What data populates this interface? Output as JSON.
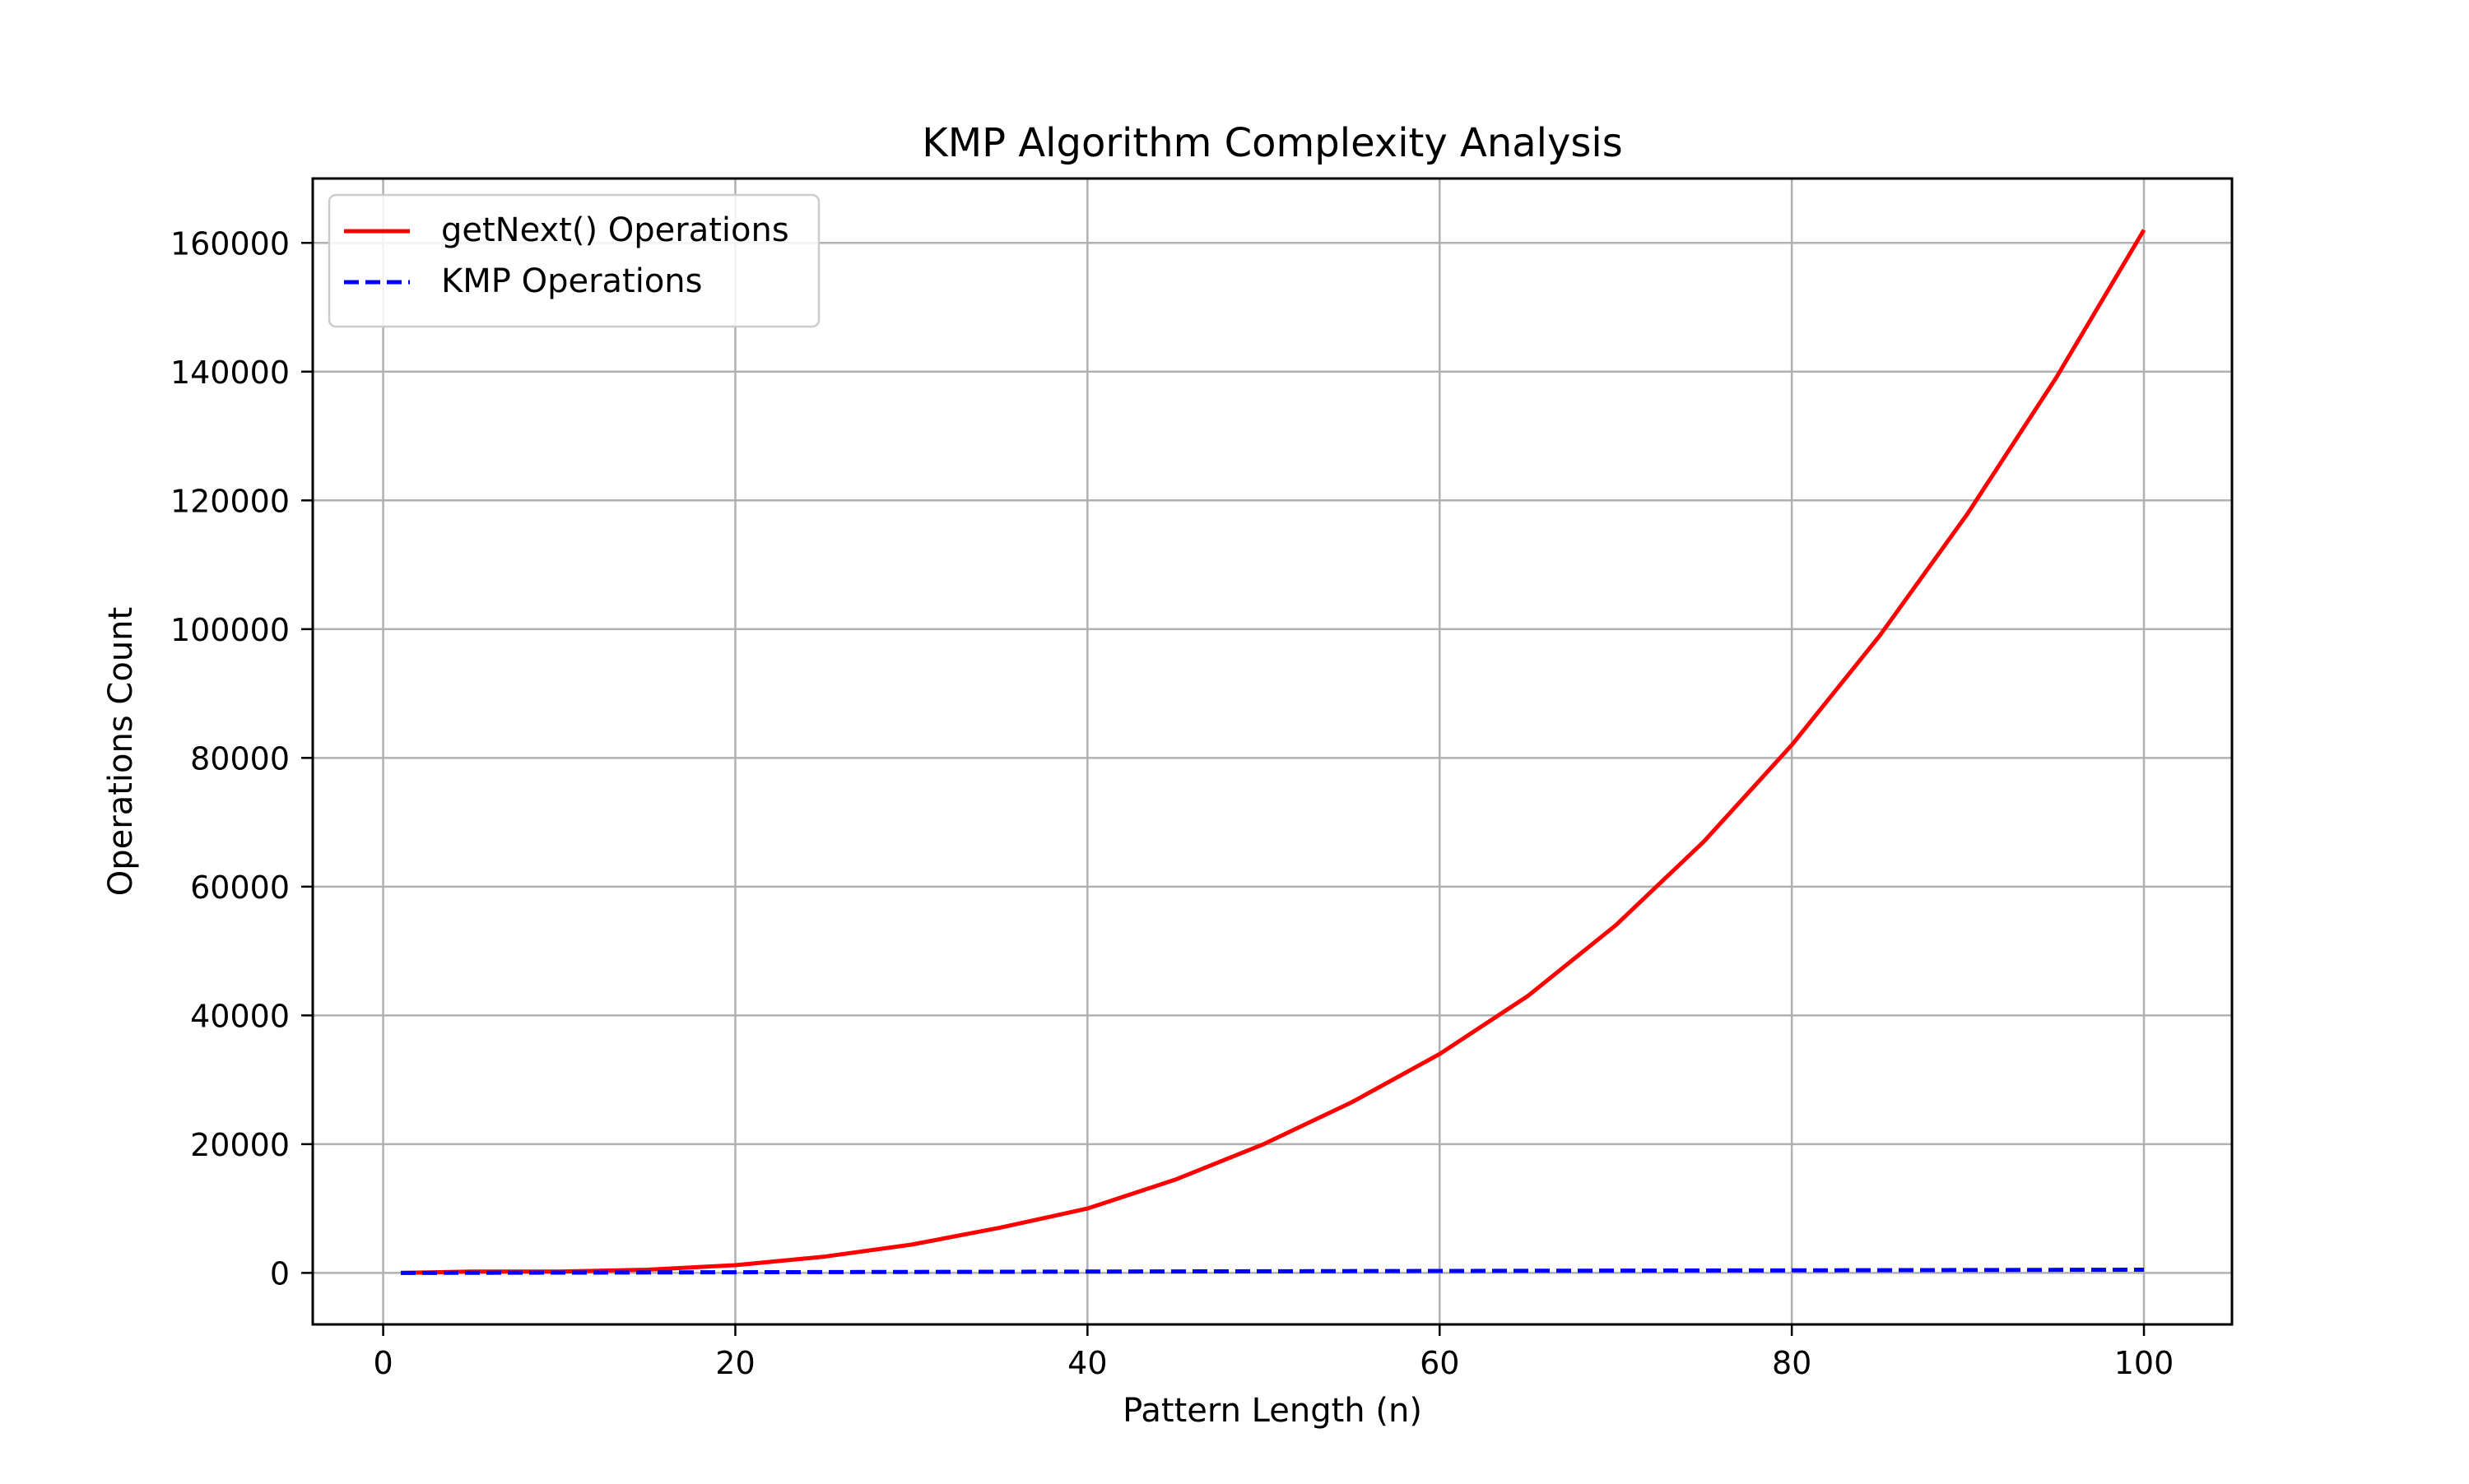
{
  "chart_data": {
    "type": "line",
    "title": "KMP Algorithm Complexity Analysis",
    "xlabel": "Pattern Length (n)",
    "ylabel": "Operations Count",
    "xlim": [
      -4,
      105
    ],
    "ylim": [
      -8000,
      170000
    ],
    "xticks": [
      0,
      20,
      40,
      60,
      80,
      100
    ],
    "yticks": [
      0,
      20000,
      40000,
      60000,
      80000,
      100000,
      120000,
      140000,
      160000
    ],
    "grid": true,
    "legend_position": "upper left",
    "series": [
      {
        "name": "getNext() Operations",
        "color": "#ff0000",
        "style": "solid",
        "x": [
          1,
          5,
          10,
          15,
          20,
          25,
          30,
          35,
          40,
          45,
          50,
          55,
          60,
          65,
          70,
          75,
          80,
          85,
          90,
          95,
          100
        ],
        "y": [
          0,
          200,
          200,
          500,
          1200,
          2500,
          4400,
          7000,
          10000,
          14500,
          20000,
          26500,
          34000,
          43000,
          54000,
          67000,
          82000,
          99000,
          118000,
          139000,
          162000
        ]
      },
      {
        "name": "KMP Operations",
        "color": "#0000ff",
        "style": "dashed",
        "x": [
          1,
          20,
          40,
          60,
          80,
          100
        ],
        "y": [
          0,
          100,
          200,
          300,
          400,
          500
        ]
      }
    ]
  }
}
